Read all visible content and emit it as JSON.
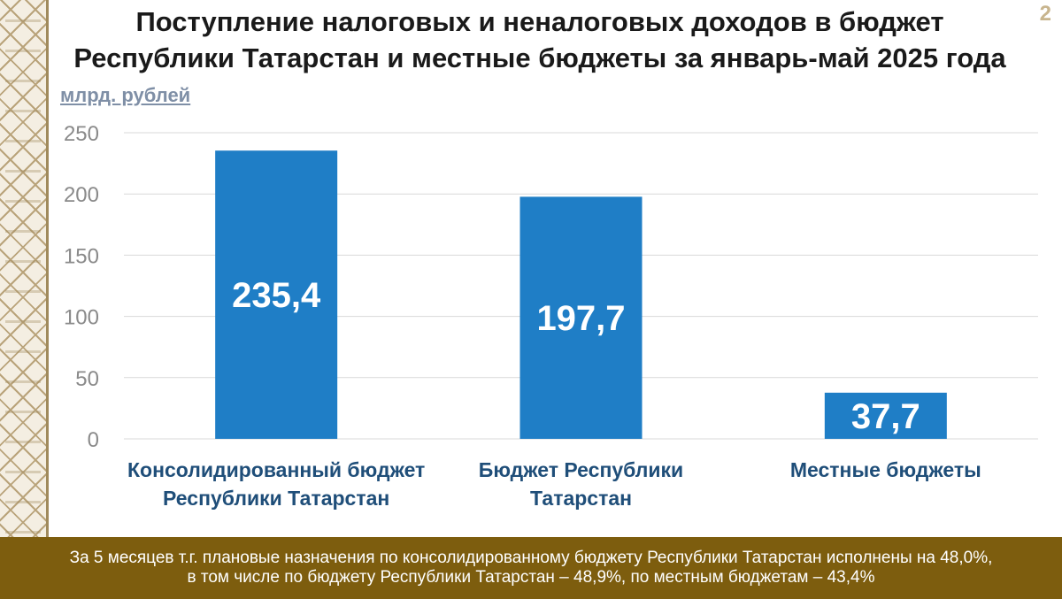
{
  "slide": {
    "number": "2",
    "title_line1": "Поступление налоговых и неналоговых доходов в бюджет",
    "title_line2": "Республики Татарстан и местные бюджеты за январь-май 2025 года",
    "unit_label": "млрд. рублей"
  },
  "chart_data": {
    "type": "bar",
    "title": "",
    "xlabel": "",
    "ylabel": "млрд. рублей",
    "ylim": [
      0,
      250
    ],
    "yticks": [
      0,
      50,
      100,
      150,
      200,
      250
    ],
    "grid": true,
    "categories": [
      [
        "Консолидированный бюджет",
        "Республики Татарстан"
      ],
      [
        "Бюджет Республики",
        "Татарстан"
      ],
      [
        "Местные бюджеты"
      ]
    ],
    "values": [
      235.4,
      197.7,
      37.7
    ],
    "value_labels": [
      "235,4",
      "197,7",
      "37,7"
    ],
    "bar_color": "#1f7ec6",
    "category_label_color": "#1f4e79",
    "tick_label_color": "#8a8a8a"
  },
  "footer": {
    "line1": "За 5 месяцев т.г. плановые назначения по консолидированному бюджету Республики Татарстан исполнены на 48,0%,",
    "line2": "в том числе по бюджету Республики Татарстан – 48,9%, по местным бюджетам – 43,4%"
  }
}
